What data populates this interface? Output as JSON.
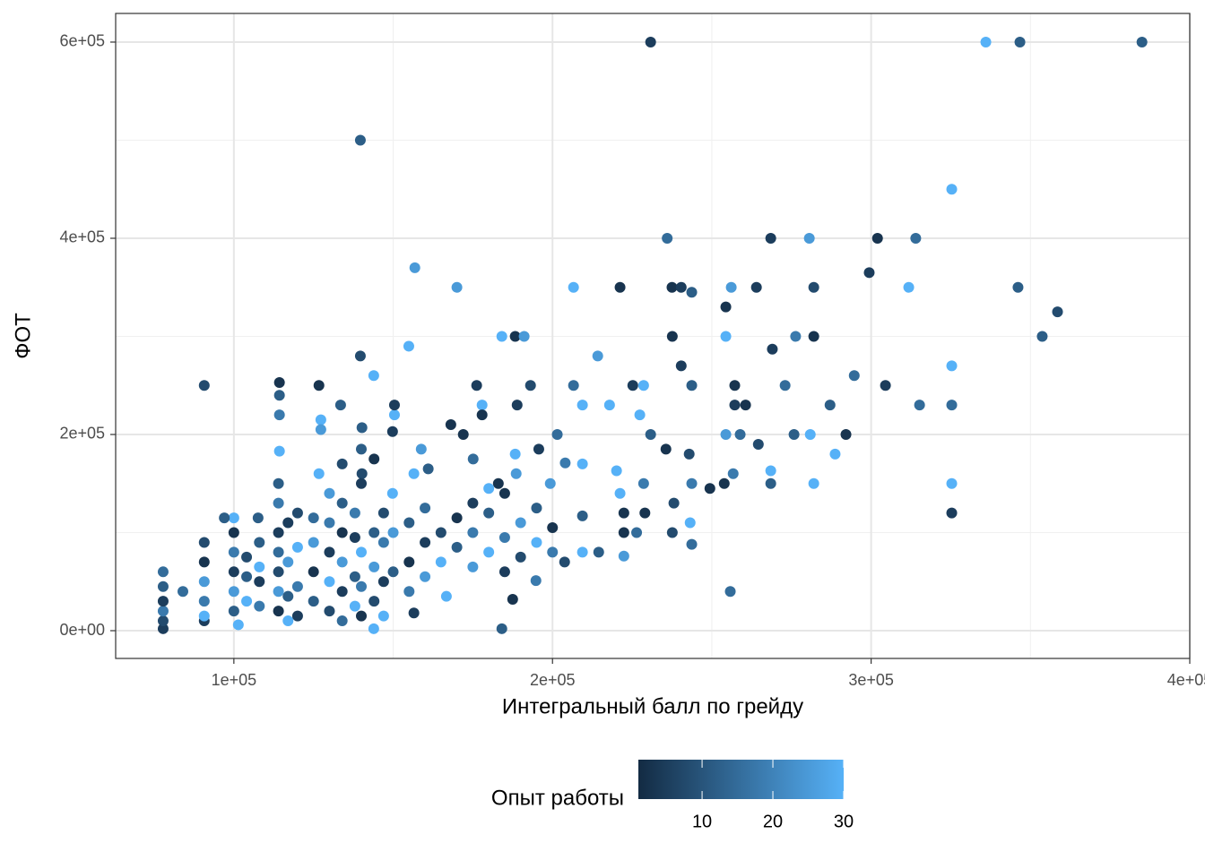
{
  "chart_data": {
    "type": "scatter",
    "x_label": "Интегральный балл по грейду",
    "y_label": "ФОТ",
    "xlim": [
      62900,
      400000
    ],
    "ylim": [
      -28300,
      629200
    ],
    "xticks": [
      {
        "value": 100000,
        "label": "1e+05"
      },
      {
        "value": 200000,
        "label": "2e+05"
      },
      {
        "value": 300000,
        "label": "3e+05"
      },
      {
        "value": 400000,
        "label": "4e+05"
      }
    ],
    "yticks": [
      {
        "value": 0,
        "label": "0e+00"
      },
      {
        "value": 200000,
        "label": "2e+05"
      },
      {
        "value": 400000,
        "label": "4e+05"
      },
      {
        "value": 600000,
        "label": "6e+05"
      }
    ],
    "grid": true,
    "legend": {
      "title": "Опыт работы",
      "lim": [
        1,
        30
      ],
      "ticks": [
        10,
        20,
        30
      ],
      "position": "bottom",
      "color_low": "#132B43",
      "color_high": "#56B1F7"
    },
    "series": [
      {
        "x": [
          230800,
          336000,
          346700,
          385000,
          139700,
          325300,
          236000,
          268500,
          280600,
          302000,
          314000,
          156800,
          299400,
          170000,
          206600,
          221200,
          237500,
          240400,
          243700,
          256100,
          264000,
          282000,
          311800,
          346100,
          358500,
          254400,
          353700,
          184100,
          188300,
          191100,
          154900,
          237600,
          254400,
          276300,
          282000,
          269000,
          139700,
          214200,
          90700,
          240400,
          325300,
          294700,
          143900,
          114300,
          126700,
          176200,
          193100,
          206600,
          225200,
          228600,
          243700,
          257200,
          273000,
          304500,
          315200,
          325300,
          209400,
          217900,
          257200,
          260600,
          287100,
          188900,
          177900,
          177900,
          227400,
          150400,
          133500,
          150400,
          168100,
          114300,
          114300,
          127300,
          127300,
          140200,
          172000,
          201500,
          230800,
          254400,
          258900,
          275800,
          280900,
          292100,
          149800,
          114300,
          158800,
          195700,
          235600,
          242900,
          288700,
          264600,
          188300,
          175100,
          204000,
          209400,
          220100,
          268500,
          256700,
          156500,
          161000,
          126700,
          140200,
          188600,
          183000,
          199300,
          228600,
          253900,
          268500,
          282000,
          325300,
          249400,
          243700,
          221200,
          149800,
          180000,
          238100,
          229000,
          325300,
          222400,
          209400,
          100000,
          107600,
          97000,
          222400,
          226400,
          237600,
          243200,
          243700,
          214500,
          222400,
          209400,
          203800,
          194800,
          255800,
          184100,
          187500,
          156500,
          166700,
          143900,
          101400,
          84000,
          77800,
          77800,
          77800,
          77800,
          77800,
          77800,
          90700,
          90700,
          90700,
          90700,
          90700,
          90700,
          100000,
          100000,
          100000,
          100000,
          100000,
          104000,
          104000,
          104000,
          108000,
          108000,
          108000,
          108000,
          114000,
          114000,
          114000,
          114000,
          114000,
          114000,
          114000,
          117000,
          117000,
          117000,
          117000,
          120000,
          120000,
          120000,
          120000,
          125000,
          125000,
          125000,
          125000,
          130000,
          130000,
          130000,
          130000,
          130000,
          134000,
          134000,
          134000,
          134000,
          134000,
          134000,
          138000,
          138000,
          138000,
          138000,
          140000,
          140000,
          140000,
          140000,
          140000,
          144000,
          144000,
          144000,
          144000,
          147000,
          147000,
          147000,
          147000,
          150000,
          150000,
          155000,
          155000,
          155000,
          160000,
          160000,
          160000,
          165000,
          165000,
          170000,
          170000,
          175000,
          175000,
          175000,
          180000,
          180000,
          185000,
          185000,
          185000,
          190000,
          190000,
          195000,
          195000,
          200000,
          200000
        ],
        "values": [
          600000,
          600000,
          600000,
          600000,
          500000,
          450000,
          400000,
          400000,
          400000,
          400000,
          400000,
          370000,
          365000,
          350000,
          350000,
          350000,
          350000,
          350000,
          345000,
          350000,
          350000,
          350000,
          350000,
          350000,
          325000,
          330000,
          300000,
          300000,
          300000,
          300000,
          290000,
          300000,
          300000,
          300000,
          300000,
          287000,
          280000,
          280000,
          250000,
          270000,
          270000,
          260000,
          260000,
          253000,
          250000,
          250000,
          250000,
          250000,
          250000,
          250000,
          250000,
          250000,
          250000,
          250000,
          230000,
          230000,
          230000,
          230000,
          230000,
          230000,
          230000,
          230000,
          230000,
          220000,
          220000,
          220000,
          230000,
          230000,
          210000,
          240000,
          220000,
          215000,
          205000,
          207000,
          200000,
          200000,
          200000,
          200000,
          200000,
          200000,
          200000,
          200000,
          203000,
          183000,
          185000,
          185000,
          185000,
          180000,
          180000,
          190000,
          180000,
          175000,
          171000,
          170000,
          163000,
          163000,
          160000,
          160000,
          165000,
          160000,
          160000,
          160000,
          150000,
          150000,
          150000,
          150000,
          150000,
          150000,
          150000,
          145000,
          150000,
          140000,
          140000,
          145000,
          130000,
          120000,
          120000,
          120000,
          117000,
          115000,
          115000,
          115000,
          100000,
          100000,
          100000,
          110000,
          88000,
          80000,
          76000,
          80000,
          70000,
          51000,
          40000,
          2000,
          32000,
          18000,
          35000,
          2000,
          6000,
          40000,
          60000,
          2000,
          10000,
          20000,
          30000,
          45000,
          10000,
          30000,
          50000,
          70000,
          90000,
          15000,
          20000,
          40000,
          60000,
          80000,
          100000,
          30000,
          55000,
          75000,
          25000,
          50000,
          65000,
          90000,
          20000,
          40000,
          60000,
          80000,
          100000,
          130000,
          150000,
          10000,
          35000,
          70000,
          110000,
          15000,
          45000,
          85000,
          120000,
          30000,
          60000,
          90000,
          115000,
          20000,
          50000,
          80000,
          110000,
          140000,
          10000,
          40000,
          70000,
          100000,
          130000,
          170000,
          25000,
          55000,
          95000,
          120000,
          15000,
          45000,
          80000,
          150000,
          185000,
          30000,
          65000,
          100000,
          175000,
          15000,
          50000,
          90000,
          120000,
          60000,
          100000,
          40000,
          70000,
          110000,
          55000,
          90000,
          125000,
          70000,
          100000,
          85000,
          115000,
          65000,
          100000,
          130000,
          80000,
          120000,
          60000,
          95000,
          140000,
          75000,
          110000,
          90000,
          125000,
          80000,
          105000
        ],
        "experience": [
          5,
          30,
          12,
          12,
          12,
          30,
          15,
          5,
          25,
          3,
          15,
          25,
          5,
          25,
          30,
          3,
          3,
          5,
          12,
          25,
          5,
          8,
          30,
          12,
          8,
          3,
          12,
          30,
          3,
          25,
          30,
          3,
          30,
          18,
          3,
          5,
          8,
          25,
          8,
          5,
          30,
          15,
          30,
          3,
          3,
          5,
          8,
          15,
          5,
          30,
          12,
          3,
          15,
          5,
          15,
          15,
          30,
          30,
          5,
          3,
          12,
          5,
          30,
          3,
          30,
          30,
          12,
          5,
          3,
          12,
          18,
          30,
          25,
          12,
          3,
          15,
          12,
          25,
          15,
          12,
          30,
          3,
          5,
          30,
          25,
          5,
          3,
          8,
          30,
          8,
          30,
          15,
          18,
          30,
          30,
          30,
          18,
          30,
          12,
          30,
          8,
          25,
          3,
          25,
          18,
          3,
          12,
          30,
          30,
          3,
          18,
          30,
          30,
          30,
          8,
          3,
          5,
          3,
          12,
          30,
          12,
          12,
          3,
          15,
          8,
          30,
          15,
          12,
          25,
          30,
          8,
          18,
          15,
          12,
          3,
          5,
          30,
          30,
          30,
          15,
          15,
          5,
          8,
          18,
          5,
          12,
          5,
          18,
          25,
          3,
          8,
          30,
          12,
          25,
          5,
          18,
          3,
          30,
          12,
          8,
          18,
          5,
          30,
          12,
          3,
          25,
          8,
          15,
          5,
          18,
          12,
          30,
          12,
          25,
          5,
          5,
          18,
          30,
          8,
          12,
          3,
          25,
          15,
          8,
          30,
          5,
          18,
          25,
          15,
          5,
          25,
          3,
          12,
          8,
          30,
          12,
          5,
          18,
          3,
          18,
          30,
          5,
          12,
          8,
          25,
          12,
          3,
          30,
          5,
          18,
          8,
          12,
          25,
          18,
          3,
          12,
          25,
          5,
          15,
          30,
          8,
          12,
          3,
          25,
          18,
          5,
          30,
          12,
          5,
          18,
          3,
          8,
          25,
          30,
          12,
          18,
          3
        ]
      }
    ]
  }
}
